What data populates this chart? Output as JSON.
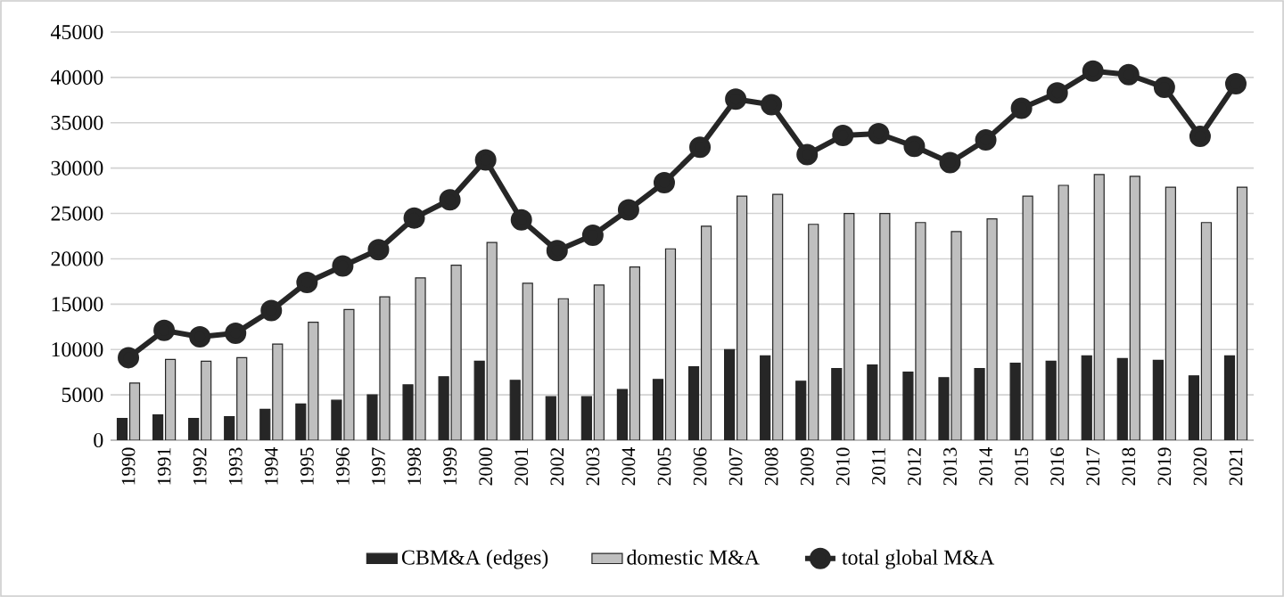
{
  "chart_data": {
    "type": "bar",
    "categories": [
      "1990",
      "1991",
      "1992",
      "1993",
      "1994",
      "1995",
      "1996",
      "1997",
      "1998",
      "1999",
      "2000",
      "2001",
      "2002",
      "2003",
      "2004",
      "2005",
      "2006",
      "2007",
      "2008",
      "2009",
      "2010",
      "2011",
      "2012",
      "2013",
      "2014",
      "2015",
      "2016",
      "2017",
      "2018",
      "2019",
      "2020",
      "2021"
    ],
    "series": [
      {
        "name": "CBM&A (edges)",
        "color": "#262626",
        "values": [
          2400,
          2800,
          2400,
          2600,
          3400,
          4000,
          4400,
          5000,
          6100,
          7000,
          8700,
          6600,
          4800,
          4800,
          5600,
          6700,
          8100,
          10000,
          9300,
          6500,
          7900,
          8300,
          7500,
          6900,
          7900,
          8500,
          8700,
          9300,
          9000,
          8800,
          7100,
          9300
        ]
      },
      {
        "name": "domestic M&A",
        "color": "#bfbfbf",
        "values": [
          6300,
          8900,
          8700,
          9100,
          10600,
          13000,
          14400,
          15800,
          17900,
          19300,
          21800,
          17300,
          15600,
          17100,
          19100,
          21100,
          23600,
          26900,
          27100,
          23800,
          25000,
          25000,
          24000,
          23000,
          24400,
          26900,
          28100,
          29300,
          29100,
          27900,
          24000,
          27900
        ]
      },
      {
        "name": "total global M&A",
        "type": "line",
        "color": "#262626",
        "values": [
          9100,
          12100,
          11400,
          11800,
          14300,
          17400,
          19200,
          21000,
          24500,
          26500,
          30900,
          24300,
          20900,
          22600,
          25400,
          28400,
          32300,
          37600,
          37000,
          31500,
          33600,
          33800,
          32400,
          30600,
          33100,
          36600,
          38300,
          40700,
          40300,
          38900,
          33500,
          39300
        ]
      }
    ],
    "ylim": [
      0,
      45000
    ],
    "yticks": [
      0,
      5000,
      10000,
      15000,
      20000,
      25000,
      30000,
      35000,
      40000,
      45000
    ],
    "grid": "y",
    "legend": "bottom",
    "marker": "circle"
  }
}
